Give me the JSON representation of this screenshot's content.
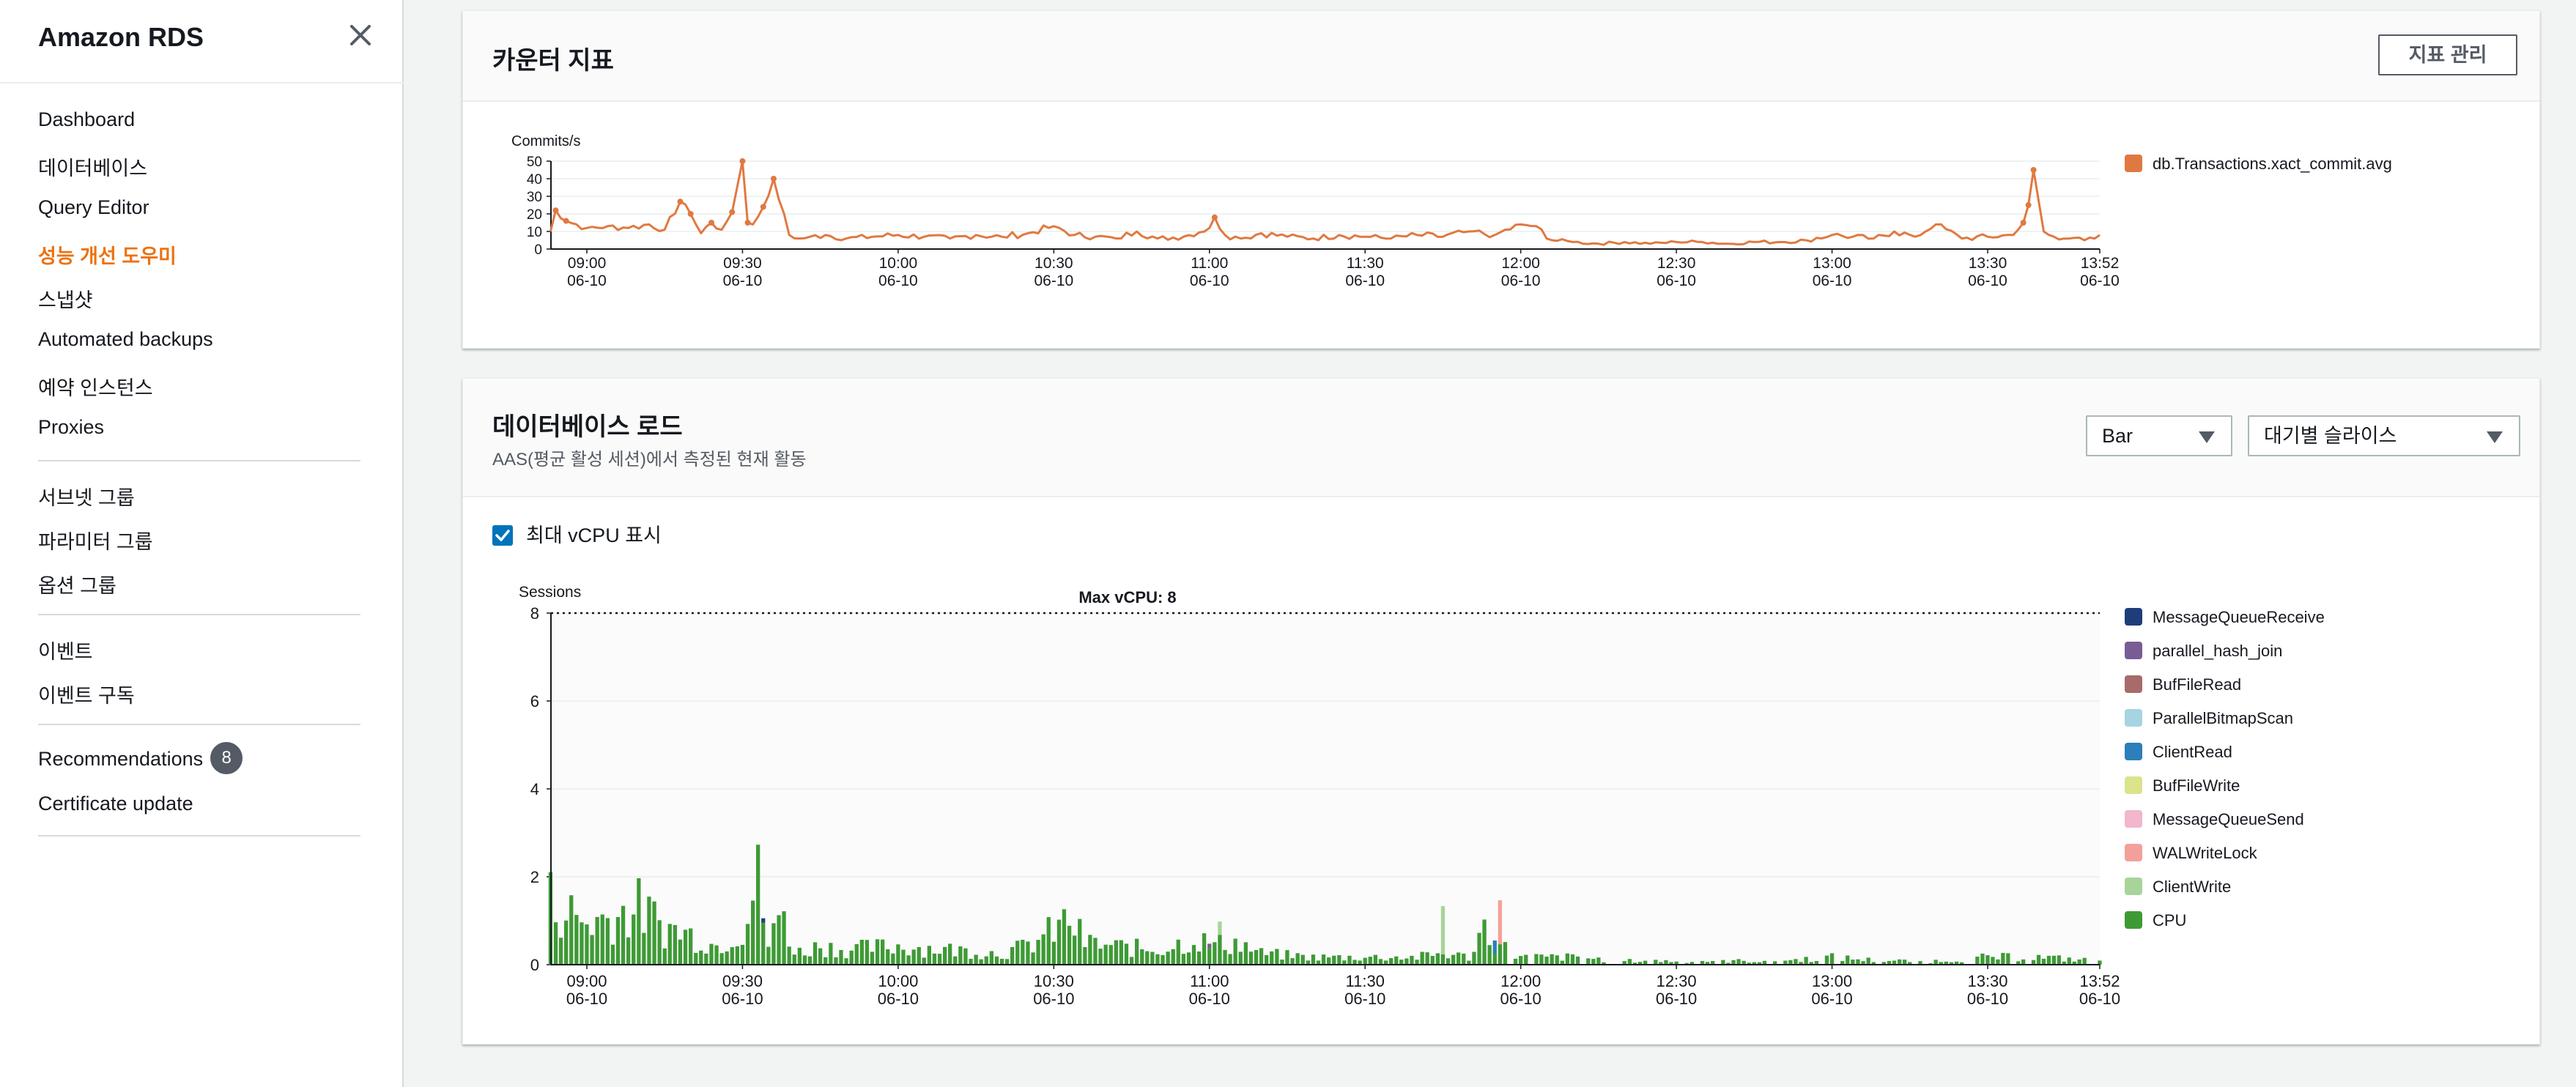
{
  "sidebar": {
    "title": "Amazon RDS",
    "groups": [
      [
        "Dashboard",
        "데이터베이스",
        "Query Editor",
        "성능 개선 도우미",
        "스냅샷",
        "Automated backups",
        "예약 인스턴스",
        "Proxies"
      ],
      [
        "서브넷 그룹",
        "파라미터 그룹",
        "옵션 그룹"
      ],
      [
        "이벤트",
        "이벤트 구독"
      ],
      [
        "Recommendations",
        "Certificate update"
      ]
    ],
    "active": "성능 개선 도우미",
    "recommendations_badge": "8"
  },
  "counter_panel": {
    "title": "카운터 지표",
    "manage_button": "지표 관리"
  },
  "load_panel": {
    "title": "데이터베이스 로드",
    "subtitle": "AAS(평균 활성 세션)에서 측정된 현재 활동",
    "chart_type_select": "Bar",
    "slice_select": "대기별 슬라이스",
    "show_vcpu_label": "최대 vCPU 표시",
    "show_vcpu_checked": true
  },
  "colors": {
    "accent": "#ec7211",
    "commit_line": "#e07941",
    "checkbox": "#0073bb"
  },
  "chart_data": [
    {
      "type": "line",
      "ylabel": "Commits/s",
      "ylim": [
        0,
        50
      ],
      "yticks": [
        0,
        10,
        20,
        30,
        40,
        50
      ],
      "x_ticks": [
        {
          "time": "09:00",
          "date": "06-10"
        },
        {
          "time": "09:30",
          "date": "06-10"
        },
        {
          "time": "10:00",
          "date": "06-10"
        },
        {
          "time": "10:30",
          "date": "06-10"
        },
        {
          "time": "11:00",
          "date": "06-10"
        },
        {
          "time": "11:30",
          "date": "06-10"
        },
        {
          "time": "12:00",
          "date": "06-10"
        },
        {
          "time": "12:30",
          "date": "06-10"
        },
        {
          "time": "13:00",
          "date": "06-10"
        },
        {
          "time": "13:30",
          "date": "06-10"
        },
        {
          "time": "13:52",
          "date": "06-10"
        }
      ],
      "grid": true,
      "legend_position": "right",
      "series": [
        {
          "name": "db.Transactions.xact_commit.avg",
          "color": "#e07941",
          "x": [
            "08:53",
            "08:54",
            "08:56",
            "09:00",
            "09:04",
            "09:08",
            "09:12",
            "09:15",
            "09:18",
            "09:20",
            "09:22",
            "09:24",
            "09:26",
            "09:28",
            "09:30",
            "09:31",
            "09:32",
            "09:34",
            "09:36",
            "09:39",
            "09:41",
            "09:43",
            "09:46",
            "09:50",
            "09:55",
            "10:00",
            "10:05",
            "10:10",
            "10:15",
            "10:20",
            "10:25",
            "10:30",
            "10:34",
            "10:38",
            "10:42",
            "10:46",
            "10:50",
            "10:55",
            "11:00",
            "11:01",
            "11:03",
            "11:06",
            "11:10",
            "11:15",
            "11:20",
            "11:25",
            "11:30",
            "11:35",
            "11:40",
            "11:45",
            "11:50",
            "11:55",
            "12:00",
            "12:03",
            "12:06",
            "12:10",
            "12:15",
            "12:20",
            "12:25",
            "12:30",
            "12:35",
            "12:40",
            "12:45",
            "12:50",
            "12:55",
            "13:00",
            "13:04",
            "13:08",
            "13:12",
            "13:16",
            "13:20",
            "13:25",
            "13:30",
            "13:35",
            "13:37",
            "13:38",
            "13:39",
            "13:41",
            "13:43",
            "13:46",
            "13:49",
            "13:51",
            "13:52"
          ],
          "values": [
            10,
            22,
            16,
            12,
            13,
            12,
            14,
            11,
            27,
            20,
            9,
            15,
            11,
            21,
            50,
            15,
            14,
            24,
            40,
            8,
            6,
            7,
            8,
            6,
            7,
            8,
            7,
            6,
            8,
            7,
            9,
            13,
            8,
            7,
            6,
            10,
            6,
            7,
            12,
            18,
            8,
            6,
            9,
            7,
            6,
            8,
            7,
            6,
            8,
            7,
            10,
            8,
            14,
            13,
            5,
            4,
            3,
            4,
            3,
            4,
            4,
            3,
            4,
            4,
            5,
            8,
            7,
            6,
            10,
            7,
            14,
            6,
            7,
            8,
            15,
            25,
            45,
            10,
            7,
            6,
            5,
            6,
            8
          ]
        }
      ]
    },
    {
      "type": "bar",
      "stacked": true,
      "ylabel": "Sessions",
      "ylim": [
        0,
        8
      ],
      "yticks": [
        0,
        2,
        4,
        6,
        8
      ],
      "annotation": "Max vCPU: 8",
      "max_vcpu": 8,
      "x_ticks": [
        {
          "time": "09:00",
          "date": "06-10"
        },
        {
          "time": "09:30",
          "date": "06-10"
        },
        {
          "time": "10:00",
          "date": "06-10"
        },
        {
          "time": "10:30",
          "date": "06-10"
        },
        {
          "time": "11:00",
          "date": "06-10"
        },
        {
          "time": "11:30",
          "date": "06-10"
        },
        {
          "time": "12:00",
          "date": "06-10"
        },
        {
          "time": "12:30",
          "date": "06-10"
        },
        {
          "time": "13:00",
          "date": "06-10"
        },
        {
          "time": "13:30",
          "date": "06-10"
        },
        {
          "time": "13:52",
          "date": "06-10"
        }
      ],
      "legend_position": "right",
      "legend": [
        {
          "name": "MessageQueueReceive",
          "color": "#1f3d7a"
        },
        {
          "name": "parallel_hash_join",
          "color": "#7a5c94"
        },
        {
          "name": "BufFileRead",
          "color": "#a96a6a"
        },
        {
          "name": "ParallelBitmapScan",
          "color": "#a6d4e0"
        },
        {
          "name": "ClientRead",
          "color": "#2c7fb8"
        },
        {
          "name": "BufFileWrite",
          "color": "#dbe38d"
        },
        {
          "name": "MessageQueueSend",
          "color": "#f2b6cd"
        },
        {
          "name": "WALWriteLock",
          "color": "#f4a09a"
        },
        {
          "name": "ClientWrite",
          "color": "#a8d49a"
        },
        {
          "name": "CPU",
          "color": "#3e9a35"
        }
      ],
      "cpu_profile": {
        "x": [
          "08:53",
          "09:00",
          "09:05",
          "09:10",
          "09:15",
          "09:20",
          "09:25",
          "09:30",
          "09:33",
          "09:35",
          "09:38",
          "09:40",
          "09:45",
          "09:50",
          "10:00",
          "10:10",
          "10:20",
          "10:25",
          "10:30",
          "10:33",
          "10:36",
          "10:40",
          "10:50",
          "10:58",
          "11:00",
          "11:05",
          "11:10",
          "11:20",
          "11:30",
          "11:40",
          "11:45",
          "11:50",
          "11:53",
          "11:56",
          "12:00",
          "12:05",
          "12:10",
          "12:20",
          "12:30",
          "12:40",
          "12:50",
          "13:00",
          "13:10",
          "13:20",
          "13:30",
          "13:40",
          "13:52"
        ],
        "values": [
          1.7,
          1.1,
          1.3,
          1.5,
          1.0,
          0.8,
          0.5,
          1.0,
          2.2,
          0.5,
          1.5,
          0.3,
          0.5,
          0.4,
          0.5,
          0.4,
          0.3,
          0.5,
          0.9,
          1.2,
          0.6,
          0.5,
          0.4,
          0.7,
          0.5,
          0.6,
          0.3,
          0.2,
          0.2,
          0.2,
          0.3,
          0.2,
          1.0,
          0.5,
          0.2,
          0.2,
          0.2,
          0.1,
          0.1,
          0.1,
          0.1,
          0.2,
          0.1,
          0.1,
          0.2,
          0.2,
          0.1
        ]
      },
      "extra_segments": [
        {
          "x": "11:45",
          "wait": "ClientWrite",
          "values": [
            1.1
          ]
        },
        {
          "x": "11:55",
          "wait": "ClientRead",
          "values": [
            0.3
          ]
        },
        {
          "x": "11:56",
          "wait": "WALWriteLock",
          "values": [
            1.0
          ]
        },
        {
          "x": "11:02",
          "wait": "ClientWrite",
          "values": [
            0.3
          ]
        },
        {
          "x": "09:34",
          "wait": "MessageQueueReceive",
          "values": [
            0.1
          ]
        },
        {
          "x": "11:00",
          "wait": "parallel_hash_join",
          "values": [
            0.1
          ]
        }
      ]
    }
  ]
}
